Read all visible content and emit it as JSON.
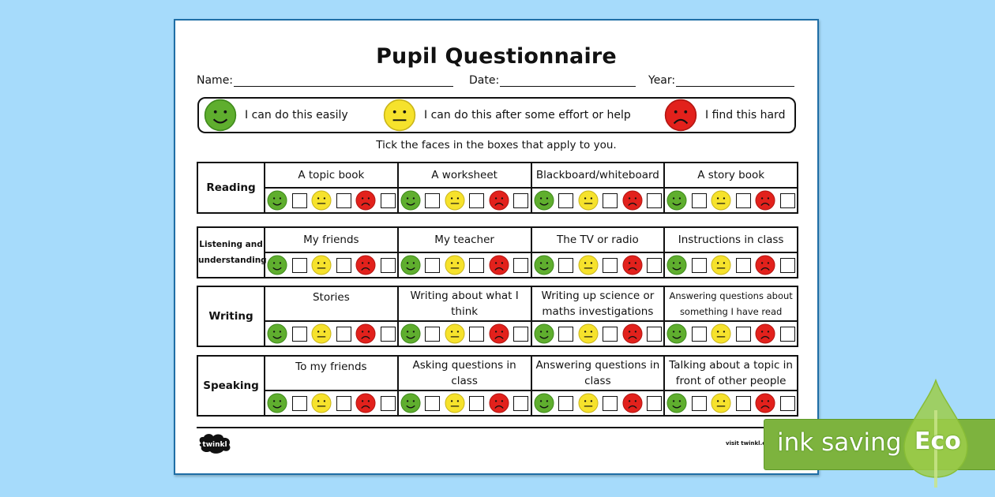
{
  "document": {
    "title": "Pupil Questionnaire",
    "fields": [
      {
        "label": "Name:"
      },
      {
        "label": "Date:"
      },
      {
        "label": "Year:"
      }
    ],
    "key": [
      {
        "face": "happy",
        "label": "I can do this easily"
      },
      {
        "face": "neutral",
        "label": "I can do this after some effort or help"
      },
      {
        "face": "sad",
        "label": "I find this hard"
      }
    ],
    "instruction": "Tick the faces in the boxes that apply to you.",
    "sections": [
      {
        "skill": "Reading",
        "items": [
          "A topic book",
          "A worksheet",
          "Blackboard/whiteboard",
          "A story book"
        ]
      },
      {
        "skill": "Listening and understanding",
        "items": [
          "My friends",
          "My teacher",
          "The TV or radio",
          "Instructions in class"
        ]
      },
      {
        "skill": "Writing",
        "items": [
          "Stories",
          "Writing about what I think",
          "Writing up science or maths investigations",
          "Answering questions about something I have read"
        ]
      },
      {
        "skill": "Speaking",
        "items": [
          "To my friends",
          "Asking questions in class",
          "Answering questions in class",
          "Talking about a topic in front of other people"
        ]
      }
    ],
    "footer": {
      "logo": "twinkl",
      "visit": "visit twinkl.co"
    }
  },
  "badge": {
    "text": "ink saving",
    "eco": "Eco"
  },
  "colors": {
    "background": "#a6dbfb",
    "happy": "#5fae2e",
    "neutral": "#f6e22c",
    "sad": "#e2211c",
    "badge": "#7db33e"
  }
}
